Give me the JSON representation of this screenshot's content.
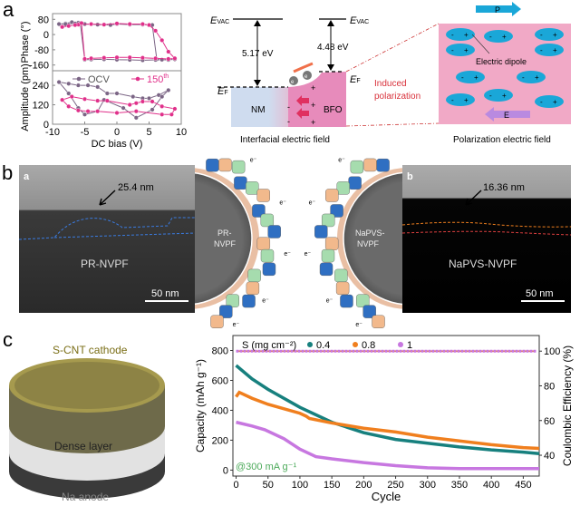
{
  "panels": {
    "a": {
      "label": "a",
      "energy": {
        "evac": "E",
        "evac_sub": "VAC",
        "ef": "E",
        "ef_sub": "F",
        "nm_work": "5.17 eV",
        "bfo_work": "4.48 eV",
        "nm": "NM",
        "bfo": "BFO",
        "electron": "e",
        "induced": [
          "Induced",
          "polarization"
        ],
        "caption": "Interfacial electric field"
      },
      "polarization": {
        "p_label": "P",
        "e_label": "E",
        "dipole_label": "Electric dipole",
        "minus": "-",
        "plus": "+",
        "caption": "Polarization electric field"
      }
    },
    "b": {
      "label": "b",
      "left_tem": {
        "sub_label": "a",
        "thickness": "25.4 nm",
        "sample": "PR-NVPF",
        "scale": "50 nm"
      },
      "right_tem": {
        "sub_label": "b",
        "thickness": "16.36 nm",
        "sample": "NaPVS-NVPF",
        "scale": "50 nm"
      },
      "left_particle": [
        "PR-",
        "NVPF"
      ],
      "right_particle": [
        "NaPVS-",
        "NVPF"
      ],
      "electron": "e⁻"
    },
    "c": {
      "label": "c",
      "cathode": "S-CNT cathode",
      "dense": "Dense layer",
      "anode": "Na anode"
    }
  },
  "colors": {
    "ocv": "#7b6585",
    "cycle150": "#e0308a",
    "s04": "#17807e",
    "s08": "#f07f1e",
    "s1": "#c777e0",
    "pink": "#f1a9c6",
    "blue": "#1aa7d8"
  },
  "chart_data": [
    {
      "type": "line",
      "title": "",
      "xlabel": "DC bias (V)",
      "ylabel": "Phase (°)",
      "xlim": [
        -10,
        10
      ],
      "ylim": [
        -190,
        110
      ],
      "xticks": [
        "-10",
        "-5",
        "0",
        "5",
        "10"
      ],
      "yticks": [
        "80",
        "0",
        "-80",
        "-160"
      ],
      "ytick_values": [
        80,
        0,
        -80,
        -160
      ],
      "xtick_values": [
        -10,
        -5,
        0,
        5,
        10
      ],
      "series": [
        {
          "name": "OCV",
          "x": [
            -9,
            -8,
            -7,
            -6,
            -5,
            -3,
            -1,
            0,
            2,
            4,
            5.5,
            6.2,
            7,
            8,
            9,
            8,
            6,
            4,
            2,
            0,
            -2,
            -4,
            -5,
            -5.7,
            -6.5,
            -8,
            -9
          ],
          "y": [
            55,
            58,
            65,
            62,
            55,
            52,
            50,
            55,
            52,
            52,
            50,
            -130,
            -132,
            -132,
            -130,
            -133,
            -133,
            -135,
            -133,
            -132,
            -130,
            -131,
            -132,
            60,
            58,
            55,
            55
          ]
        },
        {
          "name": "150th",
          "x": [
            -8.5,
            -7.5,
            -6,
            -4,
            -2,
            0,
            2,
            4,
            5,
            6,
            7,
            8,
            9,
            8,
            6,
            4,
            2,
            0,
            -2,
            -4,
            -5,
            -5.5,
            -6.5,
            -8.5
          ],
          "y": [
            40,
            45,
            52,
            55,
            52,
            58,
            55,
            55,
            50,
            20,
            -30,
            -90,
            -125,
            -128,
            -125,
            -122,
            -120,
            -120,
            -122,
            -125,
            -128,
            60,
            50,
            40
          ]
        }
      ]
    },
    {
      "type": "line",
      "title": "",
      "xlabel": "DC bias (V)",
      "ylabel": "Amplitude (pm)",
      "xlim": [
        -10,
        10
      ],
      "ylim": [
        0,
        330
      ],
      "xticks": [
        "-10",
        "-5",
        "0",
        "5",
        "10"
      ],
      "xtick_values": [
        -10,
        -5,
        0,
        5,
        10
      ],
      "yticks": [
        "240",
        "120",
        "0"
      ],
      "ytick_values": [
        240,
        120,
        0
      ],
      "legend": "top",
      "series": [
        {
          "name": "OCV",
          "x": [
            -9,
            -7.5,
            -6,
            -4.5,
            -3,
            -1.5,
            0,
            2.5,
            4,
            5,
            6.5,
            8,
            7,
            5.5,
            3,
            1,
            -2,
            -3,
            -5,
            -6,
            -7.5,
            -9
          ],
          "y": [
            260,
            250,
            240,
            240,
            230,
            190,
            190,
            170,
            160,
            160,
            180,
            210,
            170,
            90,
            40,
            100,
            150,
            80,
            60,
            100,
            190,
            260
          ]
        },
        {
          "name": "150th",
          "x": [
            -8.5,
            -7,
            -5,
            -3,
            -1.5,
            2,
            3,
            4,
            5.5,
            7,
            9,
            8.5,
            7,
            3,
            0,
            -3,
            -4.5,
            -6,
            -7.5,
            -8.5
          ],
          "y": [
            150,
            170,
            155,
            145,
            145,
            120,
            130,
            140,
            140,
            110,
            95,
            60,
            60,
            80,
            70,
            80,
            80,
            85,
            110,
            150
          ]
        }
      ]
    },
    {
      "type": "line",
      "title": "",
      "xlabel": "Cycle",
      "ylabel": "Capacity (mAh g⁻¹)",
      "y2label": "Coulombic Efficiency (%)",
      "xlim": [
        -5,
        475
      ],
      "ylim": [
        -40,
        900
      ],
      "y2lim": [
        28,
        109
      ],
      "xticks": [
        "0",
        "50",
        "100",
        "150",
        "200",
        "250",
        "300",
        "350",
        "400",
        "450"
      ],
      "xtick_values": [
        0,
        50,
        100,
        150,
        200,
        250,
        300,
        350,
        400,
        450
      ],
      "yticks": [
        "0",
        "200",
        "400",
        "600",
        "800"
      ],
      "ytick_values": [
        0,
        200,
        400,
        600,
        800
      ],
      "y2ticks": [
        "40",
        "60",
        "80",
        "100"
      ],
      "y2tick_values": [
        40,
        60,
        80,
        100
      ],
      "legend_title": "S (mg cm⁻²)",
      "legend": "top",
      "annotation": "@300 mA g⁻¹",
      "series": [
        {
          "name": "0.4",
          "x": [
            0,
            25,
            50,
            100,
            150,
            200,
            250,
            300,
            350,
            400,
            450,
            475
          ],
          "y": [
            700,
            610,
            540,
            420,
            320,
            250,
            205,
            180,
            155,
            135,
            120,
            110
          ],
          "ce": 100
        },
        {
          "name": "0.8",
          "x": [
            0,
            5,
            25,
            50,
            100,
            110,
            115,
            150,
            200,
            250,
            300,
            350,
            400,
            450,
            475
          ],
          "y": [
            490,
            520,
            480,
            440,
            380,
            360,
            345,
            315,
            280,
            255,
            220,
            195,
            170,
            150,
            145
          ],
          "ce": 100
        },
        {
          "name": "1",
          "x": [
            0,
            25,
            45,
            75,
            100,
            125,
            150,
            200,
            250,
            300,
            350,
            400,
            475
          ],
          "y": [
            320,
            295,
            270,
            210,
            140,
            90,
            75,
            50,
            30,
            15,
            10,
            10,
            10
          ],
          "ce": 100
        }
      ]
    }
  ]
}
